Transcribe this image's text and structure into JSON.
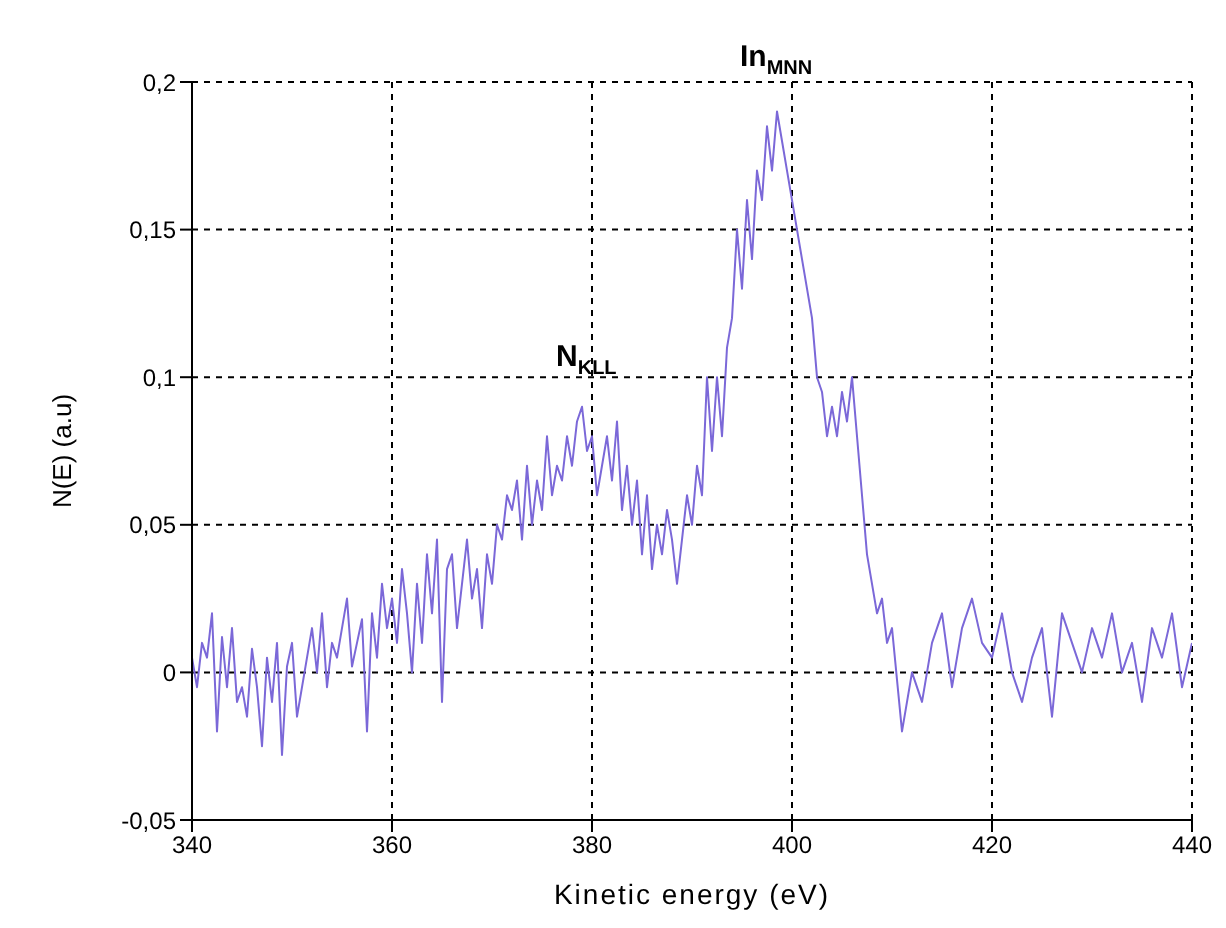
{
  "chart_data": {
    "type": "line",
    "xlabel": "Kinetic energy (eV)",
    "ylabel": "N(E) (a.u)",
    "xlim": [
      340,
      440
    ],
    "xticks": [
      340,
      360,
      380,
      400,
      420,
      440
    ],
    "ylim": [
      -0.05,
      0.2
    ],
    "yticks": [
      {
        "value": -0.05,
        "label": "-0,05"
      },
      {
        "value": 0,
        "label": "0"
      },
      {
        "value": 0.05,
        "label": "0,05"
      },
      {
        "value": 0.1,
        "label": "0,1"
      },
      {
        "value": 0.15,
        "label": "0,15"
      },
      {
        "value": 0.2,
        "label": "0,2"
      }
    ],
    "grid": true,
    "marker": "none",
    "line_style": "solid",
    "annotations": [
      "In$_{MNN}$",
      "N$_{KLL}$"
    ],
    "series": [
      {
        "color": "#7b68d8",
        "x": [
          340,
          340.5,
          341,
          341.5,
          342,
          342.5,
          343,
          343.5,
          344,
          344.5,
          345,
          345.5,
          346,
          346.5,
          347,
          347.5,
          348,
          348.5,
          349,
          349.5,
          350,
          350.5,
          351,
          351.5,
          352,
          352.5,
          353,
          353.5,
          354,
          354.5,
          355,
          355.5,
          356,
          356.5,
          357,
          357.5,
          358,
          358.5,
          359,
          359.5,
          360,
          360.5,
          361,
          361.5,
          362,
          362.5,
          363,
          363.5,
          364,
          364.5,
          365,
          365.5,
          366,
          366.5,
          367,
          367.5,
          368,
          368.5,
          369,
          369.5,
          370,
          370.5,
          371,
          371.5,
          372,
          372.5,
          373,
          373.5,
          374,
          374.5,
          375,
          375.5,
          376,
          376.5,
          377,
          377.5,
          378,
          378.5,
          379,
          379.5,
          380,
          380.5,
          381,
          381.5,
          382,
          382.5,
          383,
          383.5,
          384,
          384.5,
          385,
          385.5,
          386,
          386.5,
          387,
          387.5,
          388,
          388.5,
          389,
          389.5,
          390,
          390.5,
          391,
          391.5,
          392,
          392.5,
          393,
          393.5,
          394,
          394.5,
          395,
          395.5,
          396,
          396.5,
          397,
          397.5,
          398,
          398.5,
          399,
          399.5,
          400,
          400.5,
          401,
          401.5,
          402,
          402.5,
          403,
          403.5,
          404,
          404.5,
          405,
          405.5,
          406,
          406.5,
          407,
          407.5,
          408,
          408.5,
          409,
          409.5,
          410,
          411,
          412,
          413,
          414,
          415,
          416,
          417,
          418,
          419,
          420,
          421,
          422,
          423,
          424,
          425,
          426,
          427,
          428,
          429,
          430,
          431,
          432,
          433,
          434,
          435,
          436,
          437,
          438,
          439,
          440
        ],
        "values": [
          0.005,
          -0.005,
          0.01,
          0.005,
          0.02,
          -0.02,
          0.012,
          -0.005,
          0.015,
          -0.01,
          -0.005,
          -0.015,
          0.008,
          -0.005,
          -0.025,
          0.005,
          -0.01,
          0.01,
          -0.028,
          0.002,
          0.01,
          -0.015,
          -0.005,
          0.005,
          0.015,
          0.0,
          0.02,
          -0.005,
          0.01,
          0.005,
          0.015,
          0.025,
          0.002,
          0.01,
          0.018,
          -0.02,
          0.02,
          0.005,
          0.03,
          0.015,
          0.025,
          0.01,
          0.035,
          0.02,
          0.0,
          0.03,
          0.01,
          0.04,
          0.02,
          0.045,
          -0.01,
          0.035,
          0.04,
          0.015,
          0.03,
          0.045,
          0.025,
          0.035,
          0.015,
          0.04,
          0.03,
          0.05,
          0.045,
          0.06,
          0.055,
          0.065,
          0.045,
          0.07,
          0.05,
          0.065,
          0.055,
          0.08,
          0.06,
          0.07,
          0.065,
          0.08,
          0.07,
          0.085,
          0.09,
          0.075,
          0.08,
          0.06,
          0.07,
          0.08,
          0.065,
          0.085,
          0.055,
          0.07,
          0.05,
          0.065,
          0.04,
          0.06,
          0.035,
          0.05,
          0.04,
          0.055,
          0.045,
          0.03,
          0.045,
          0.06,
          0.05,
          0.07,
          0.06,
          0.1,
          0.075,
          0.1,
          0.08,
          0.11,
          0.12,
          0.15,
          0.13,
          0.16,
          0.14,
          0.17,
          0.16,
          0.185,
          0.17,
          0.19,
          0.18,
          0.17,
          0.16,
          0.15,
          0.14,
          0.13,
          0.12,
          0.1,
          0.095,
          0.08,
          0.09,
          0.08,
          0.095,
          0.085,
          0.1,
          0.08,
          0.06,
          0.04,
          0.03,
          0.02,
          0.025,
          0.01,
          0.015,
          -0.02,
          0.0,
          -0.01,
          0.01,
          0.02,
          -0.005,
          0.015,
          0.025,
          0.01,
          0.005,
          0.02,
          0.0,
          -0.01,
          0.005,
          0.015,
          -0.015,
          0.02,
          0.01,
          0.0,
          0.015,
          0.005,
          0.02,
          0.0,
          0.01,
          -0.01,
          0.015,
          0.005,
          0.02,
          -0.005,
          0.01
        ]
      }
    ]
  }
}
